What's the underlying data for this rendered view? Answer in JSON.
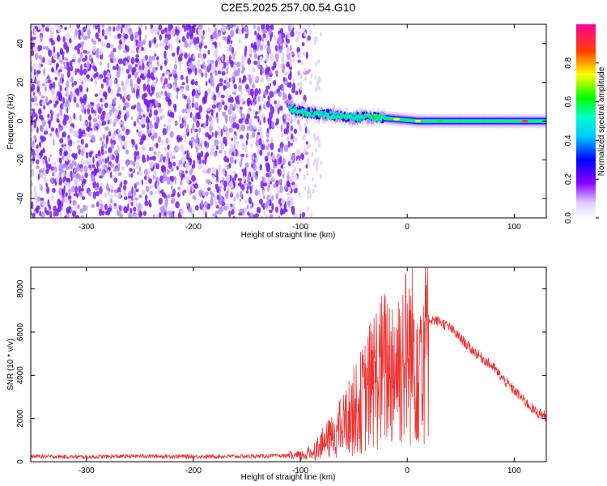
{
  "chart_data": [
    {
      "type": "heatmap",
      "title": "C2E5.2025.257.00.54.G10",
      "xlabel": "Height of straight line (km)",
      "ylabel": "Frequency (Hz)",
      "xlim": [
        -352,
        130
      ],
      "ylim": [
        -50,
        50
      ],
      "xticks": [
        -300,
        -200,
        -100,
        0,
        100
      ],
      "yticks": [
        -40,
        -20,
        0,
        20,
        40
      ],
      "colorbar": {
        "label": "Normalized spectral amplitude",
        "ticks": [
          0.0,
          0.2,
          0.4,
          0.6,
          0.8
        ],
        "tick_labels": [
          "0.0",
          "0.2",
          "0.4",
          "0.6",
          "0.8"
        ],
        "range": [
          0,
          1
        ],
        "colormap": [
          "#ffffff",
          "#cc99ff",
          "#7a00ff",
          "#0000ff",
          "#00ffff",
          "#00ff00",
          "#ffff00",
          "#ff0000",
          "#ff00aa"
        ]
      },
      "noise_region": {
        "x_start": -352,
        "x_end": -110,
        "typical_amplitude": 0.15
      },
      "signal_track": [
        {
          "x": -110,
          "freq": 6,
          "amp": 0.4
        },
        {
          "x": -90,
          "freq": 4,
          "amp": 0.45
        },
        {
          "x": -70,
          "freq": 3,
          "amp": 0.5
        },
        {
          "x": -50,
          "freq": 2,
          "amp": 0.5
        },
        {
          "x": -30,
          "freq": 2,
          "amp": 0.55
        },
        {
          "x": -10,
          "freq": 1,
          "amp": 0.7
        },
        {
          "x": 10,
          "freq": 0,
          "amp": 0.6
        },
        {
          "x": 30,
          "freq": 0,
          "amp": 0.55
        },
        {
          "x": 60,
          "freq": 0,
          "amp": 0.5
        },
        {
          "x": 90,
          "freq": 0,
          "amp": 0.5
        },
        {
          "x": 110,
          "freq": 0,
          "amp": 0.8
        },
        {
          "x": 130,
          "freq": 0,
          "amp": 0.5
        }
      ]
    },
    {
      "type": "line",
      "title": "",
      "xlabel": "Height of straight line (km)",
      "ylabel": "SNR (10 * v/v)",
      "xlim": [
        -352,
        130
      ],
      "ylim": [
        0,
        9000
      ],
      "xticks": [
        -300,
        -200,
        -100,
        0,
        100
      ],
      "yticks": [
        0,
        2000,
        4000,
        6000,
        8000
      ],
      "line_color": "#ee3333",
      "series": [
        {
          "x": [
            -352,
            -300,
            -250,
            -200,
            -150,
            -120,
            -100,
            -90,
            -80,
            -70,
            -60,
            -50,
            -40,
            -30,
            -20,
            -10,
            0,
            10,
            20,
            30,
            40,
            50,
            60,
            70,
            80,
            90,
            100,
            110,
            120,
            130
          ],
          "values": [
            250,
            220,
            260,
            240,
            250,
            270,
            300,
            450,
            900,
            1300,
            1900,
            2600,
            3300,
            4400,
            4800,
            5100,
            5500,
            5800,
            6600,
            6500,
            6200,
            5700,
            5200,
            4800,
            4400,
            3800,
            3300,
            2800,
            2300,
            2100
          ]
        }
      ]
    }
  ]
}
